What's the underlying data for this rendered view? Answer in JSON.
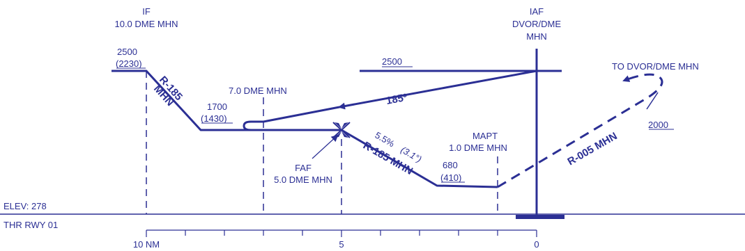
{
  "colors": {
    "ink": "#2b2f94",
    "background": "#ffffff"
  },
  "fixes": {
    "if_name": "IF",
    "if_dist": "10.0 DME MHN",
    "iaf_name": "IAF",
    "iaf_facility_1": "DVOR/DME",
    "iaf_facility_2": "MHN",
    "dme7": "7.0 DME MHN",
    "faf_name": "FAF",
    "faf_dist": "5.0 DME MHN",
    "mapt_name": "MAPT",
    "mapt_dist": "1.0 DME MHN"
  },
  "altitudes": {
    "if_alt": "2500",
    "if_height": "(2230)",
    "step_alt": "1700",
    "step_height": "(1430)",
    "mapt_alt": "680",
    "mapt_height": "(410)",
    "procedure_alt": "2500",
    "missed_alt": "2000"
  },
  "courses": {
    "initial_radial_1": "R-185",
    "initial_radial_2": "MHN",
    "outbound": "185º",
    "final_radial": "R-185 MHN",
    "missed_radial": "R-005 MHN",
    "gradient_pct": "5.5%",
    "gradient_deg": "(3.1°)"
  },
  "missed_approach": {
    "label": "TO DVOR/DME MHN"
  },
  "aerodrome": {
    "elevation": "ELEV: 278",
    "threshold": "THR RWY 01"
  },
  "distance_scale": {
    "labels": [
      "10 NM",
      "5",
      "0"
    ]
  }
}
